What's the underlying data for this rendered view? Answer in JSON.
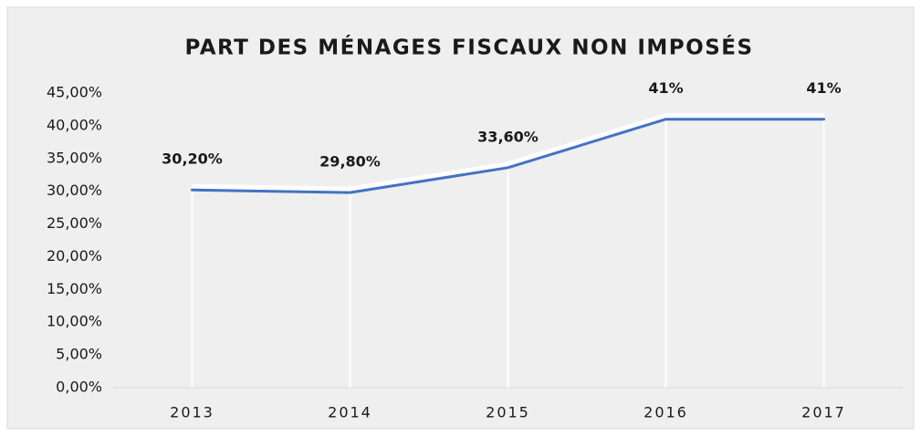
{
  "chart_data": {
    "type": "line",
    "title": "PART DES MÉNAGES FISCAUX NON IMPOSÉS",
    "categories": [
      "2013",
      "2014",
      "2015",
      "2016",
      "2017"
    ],
    "series": [
      {
        "name": "Part des ménages fiscaux non imposés",
        "color": "#4472c4",
        "values": [
          30.2,
          29.8,
          33.6,
          41,
          41
        ],
        "value_labels": [
          "30,20%",
          "29,80%",
          "33,60%",
          "41%",
          "41%"
        ]
      }
    ],
    "ylim": [
      0,
      45
    ],
    "yticks": [
      {
        "value": 0,
        "label": "0,00%"
      },
      {
        "value": 5,
        "label": "5,00%"
      },
      {
        "value": 10,
        "label": "10,00%"
      },
      {
        "value": 15,
        "label": "15,00%"
      },
      {
        "value": 20,
        "label": "20,00%"
      },
      {
        "value": 25,
        "label": "25,00%"
      },
      {
        "value": 30,
        "label": "30,00%"
      },
      {
        "value": 35,
        "label": "35,00%"
      },
      {
        "value": 40,
        "label": "40,00%"
      },
      {
        "value": 45,
        "label": "45,00%"
      }
    ],
    "grid": false,
    "drop_lines": true
  }
}
